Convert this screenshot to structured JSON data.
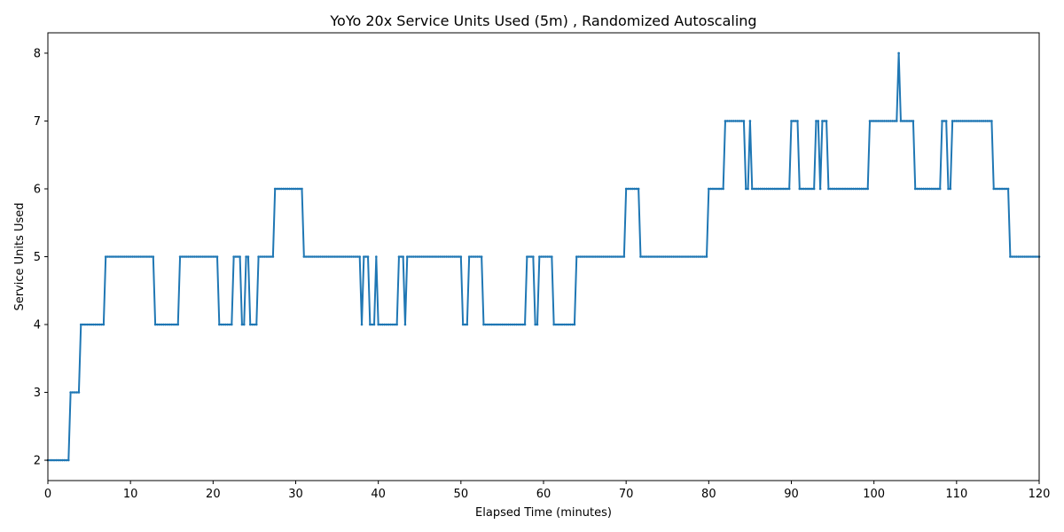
{
  "chart_data": {
    "type": "line",
    "title": "YoYo 20x Service Units Used (5m) , Randomized Autoscaling",
    "xlabel": "Elapsed Time (minutes)",
    "ylabel": "Service Units Used",
    "xlim": [
      0,
      120
    ],
    "ylim": [
      1.7,
      8.3
    ],
    "xticks": [
      0,
      10,
      20,
      30,
      40,
      50,
      60,
      70,
      80,
      90,
      100,
      110,
      120
    ],
    "yticks": [
      2,
      3,
      4,
      5,
      6,
      7,
      8
    ],
    "grid": false,
    "legend": "none",
    "line_color": "#1f77b4",
    "step_minutes": 0.25,
    "series": [
      {
        "changes": [
          [
            0,
            2
          ],
          [
            2.7,
            3
          ],
          [
            3.9,
            4
          ],
          [
            6.8,
            5
          ],
          [
            13.0,
            4
          ],
          [
            15.8,
            5
          ],
          [
            20.6,
            4
          ],
          [
            22.3,
            5
          ],
          [
            23.5,
            4
          ],
          [
            23.8,
            5
          ],
          [
            24.3,
            4
          ],
          [
            25.3,
            5
          ],
          [
            27.5,
            6
          ],
          [
            30.9,
            5
          ],
          [
            37.8,
            4
          ],
          [
            38.1,
            5
          ],
          [
            38.8,
            4
          ],
          [
            39.6,
            5
          ],
          [
            39.8,
            4
          ],
          [
            42.3,
            5
          ],
          [
            43.1,
            4
          ],
          [
            43.4,
            5
          ],
          [
            50.1,
            4
          ],
          [
            50.3,
            5
          ],
          [
            50.5,
            4
          ],
          [
            51.0,
            5
          ],
          [
            52.6,
            4
          ],
          [
            57.8,
            5
          ],
          [
            59.0,
            4
          ],
          [
            59.3,
            5
          ],
          [
            61.1,
            4
          ],
          [
            62.3,
            5
          ],
          [
            62.5,
            4
          ],
          [
            63.8,
            5
          ],
          [
            64.3,
            4
          ],
          [
            64.5,
            5
          ],
          [
            69.9,
            6
          ],
          [
            71.6,
            5
          ],
          [
            76.3,
            4
          ],
          [
            76.5,
            5
          ],
          [
            80.0,
            6
          ],
          [
            82.0,
            7
          ],
          [
            84.5,
            6
          ],
          [
            84.8,
            7
          ],
          [
            85.1,
            6
          ],
          [
            90.0,
            7
          ],
          [
            91.0,
            6
          ],
          [
            92.8,
            7
          ],
          [
            93.3,
            6
          ],
          [
            93.6,
            7
          ],
          [
            94.3,
            6
          ],
          [
            99.3,
            7
          ],
          [
            102.8,
            8
          ],
          [
            103.1,
            7
          ],
          [
            104.9,
            6
          ],
          [
            108.1,
            7
          ],
          [
            109.0,
            6
          ],
          [
            109.3,
            7
          ],
          [
            114.3,
            6
          ],
          [
            116.3,
            5
          ],
          [
            120,
            5
          ]
        ]
      }
    ]
  }
}
